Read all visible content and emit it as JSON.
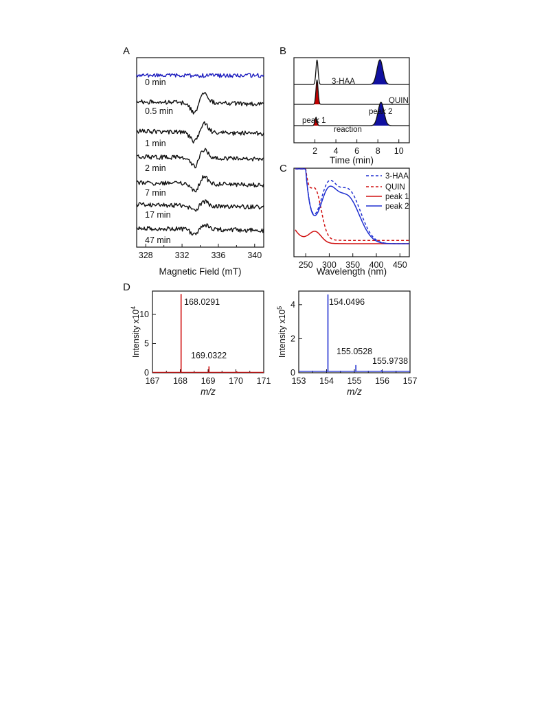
{
  "panels": {
    "a": "A",
    "b": "B",
    "c": "C",
    "d": "D"
  },
  "chart_data": [
    {
      "id": "A",
      "type": "line",
      "xlabel": "Magnetic Field (mT)",
      "ylabel": "",
      "xlim": [
        327,
        341
      ],
      "xticks": [
        328,
        332,
        336,
        340
      ],
      "grid": false,
      "series": [
        {
          "name": "0 min",
          "color": "#1f1fbf",
          "amplitude": 0.0
        },
        {
          "name": "0.5 min",
          "color": "#111111",
          "amplitude": 1.0
        },
        {
          "name": "1 min",
          "color": "#111111",
          "amplitude": 0.9
        },
        {
          "name": "2 min",
          "color": "#111111",
          "amplitude": 0.85
        },
        {
          "name": "7 min",
          "color": "#111111",
          "amplitude": 0.7
        },
        {
          "name": "17 min",
          "color": "#111111",
          "amplitude": 0.45
        },
        {
          "name": "47 min",
          "color": "#111111",
          "amplitude": 0.5
        }
      ]
    },
    {
      "id": "B",
      "type": "line",
      "xlabel": "Time (min)",
      "xlim": [
        0,
        11
      ],
      "xticks": [
        2,
        4,
        6,
        8,
        10
      ],
      "traces": [
        {
          "name": "3-HAA",
          "peaks": [
            {
              "t": 2.2,
              "h": 1.0,
              "fill": ""
            },
            {
              "t": 8.2,
              "h": 1.0,
              "fill": "#1010a0"
            }
          ]
        },
        {
          "name": "QUIN",
          "peaks": [
            {
              "t": 2.2,
              "h": 1.0,
              "fill": "#c00000"
            }
          ]
        },
        {
          "name": "reaction",
          "peaks": [
            {
              "t": 2.1,
              "h": 0.35,
              "fill": "#c00000"
            },
            {
              "t": 8.3,
              "h": 1.0,
              "fill": "#1010a0"
            }
          ]
        }
      ],
      "annotations": [
        "peak 1",
        "peak 2"
      ]
    },
    {
      "id": "C",
      "type": "line",
      "xlabel": "Wavelength (nm)",
      "xlim": [
        225,
        470
      ],
      "xticks": [
        250,
        300,
        350,
        400,
        450
      ],
      "legend": "top-right",
      "series": [
        {
          "name": "3-HAA",
          "color": "#1f2fd0",
          "dash": true
        },
        {
          "name": "QUIN",
          "color": "#d01010",
          "dash": true
        },
        {
          "name": "peak 1",
          "color": "#d01010",
          "dash": false
        },
        {
          "name": "peak 2",
          "color": "#1f2fd0",
          "dash": false
        }
      ]
    },
    {
      "id": "D-left",
      "type": "bar",
      "color": "#d01010",
      "xlabel_italic": "m/z",
      "ylabel": "Intensity x10",
      "ylabel_exp": "4",
      "xlim": [
        167,
        171
      ],
      "ylim": [
        0,
        14
      ],
      "xticks": [
        167,
        168,
        169,
        170,
        171
      ],
      "yticks": [
        0,
        5,
        10
      ],
      "peaks": [
        {
          "x": 168.0291,
          "y": 13.5,
          "label": "168.0291"
        },
        {
          "x": 169.0322,
          "y": 1.1,
          "label": "169.0322"
        },
        {
          "x": 170.03,
          "y": 0.25,
          "label": ""
        }
      ]
    },
    {
      "id": "D-right",
      "type": "bar",
      "color": "#1f2fd0",
      "xlabel_italic": "m/z",
      "ylabel": "Intensity x10",
      "ylabel_exp": "5",
      "xlim": [
        153,
        157
      ],
      "ylim": [
        0,
        4.8
      ],
      "xticks": [
        153,
        154,
        155,
        156,
        157
      ],
      "yticks": [
        0,
        2,
        4
      ],
      "peaks": [
        {
          "x": 153.9,
          "y": 0.1,
          "label": ""
        },
        {
          "x": 154.0496,
          "y": 4.6,
          "label": "154.0496"
        },
        {
          "x": 155.0528,
          "y": 0.45,
          "label": "155.0528"
        },
        {
          "x": 155.9738,
          "y": 0.15,
          "label": "155.9738"
        }
      ]
    }
  ]
}
